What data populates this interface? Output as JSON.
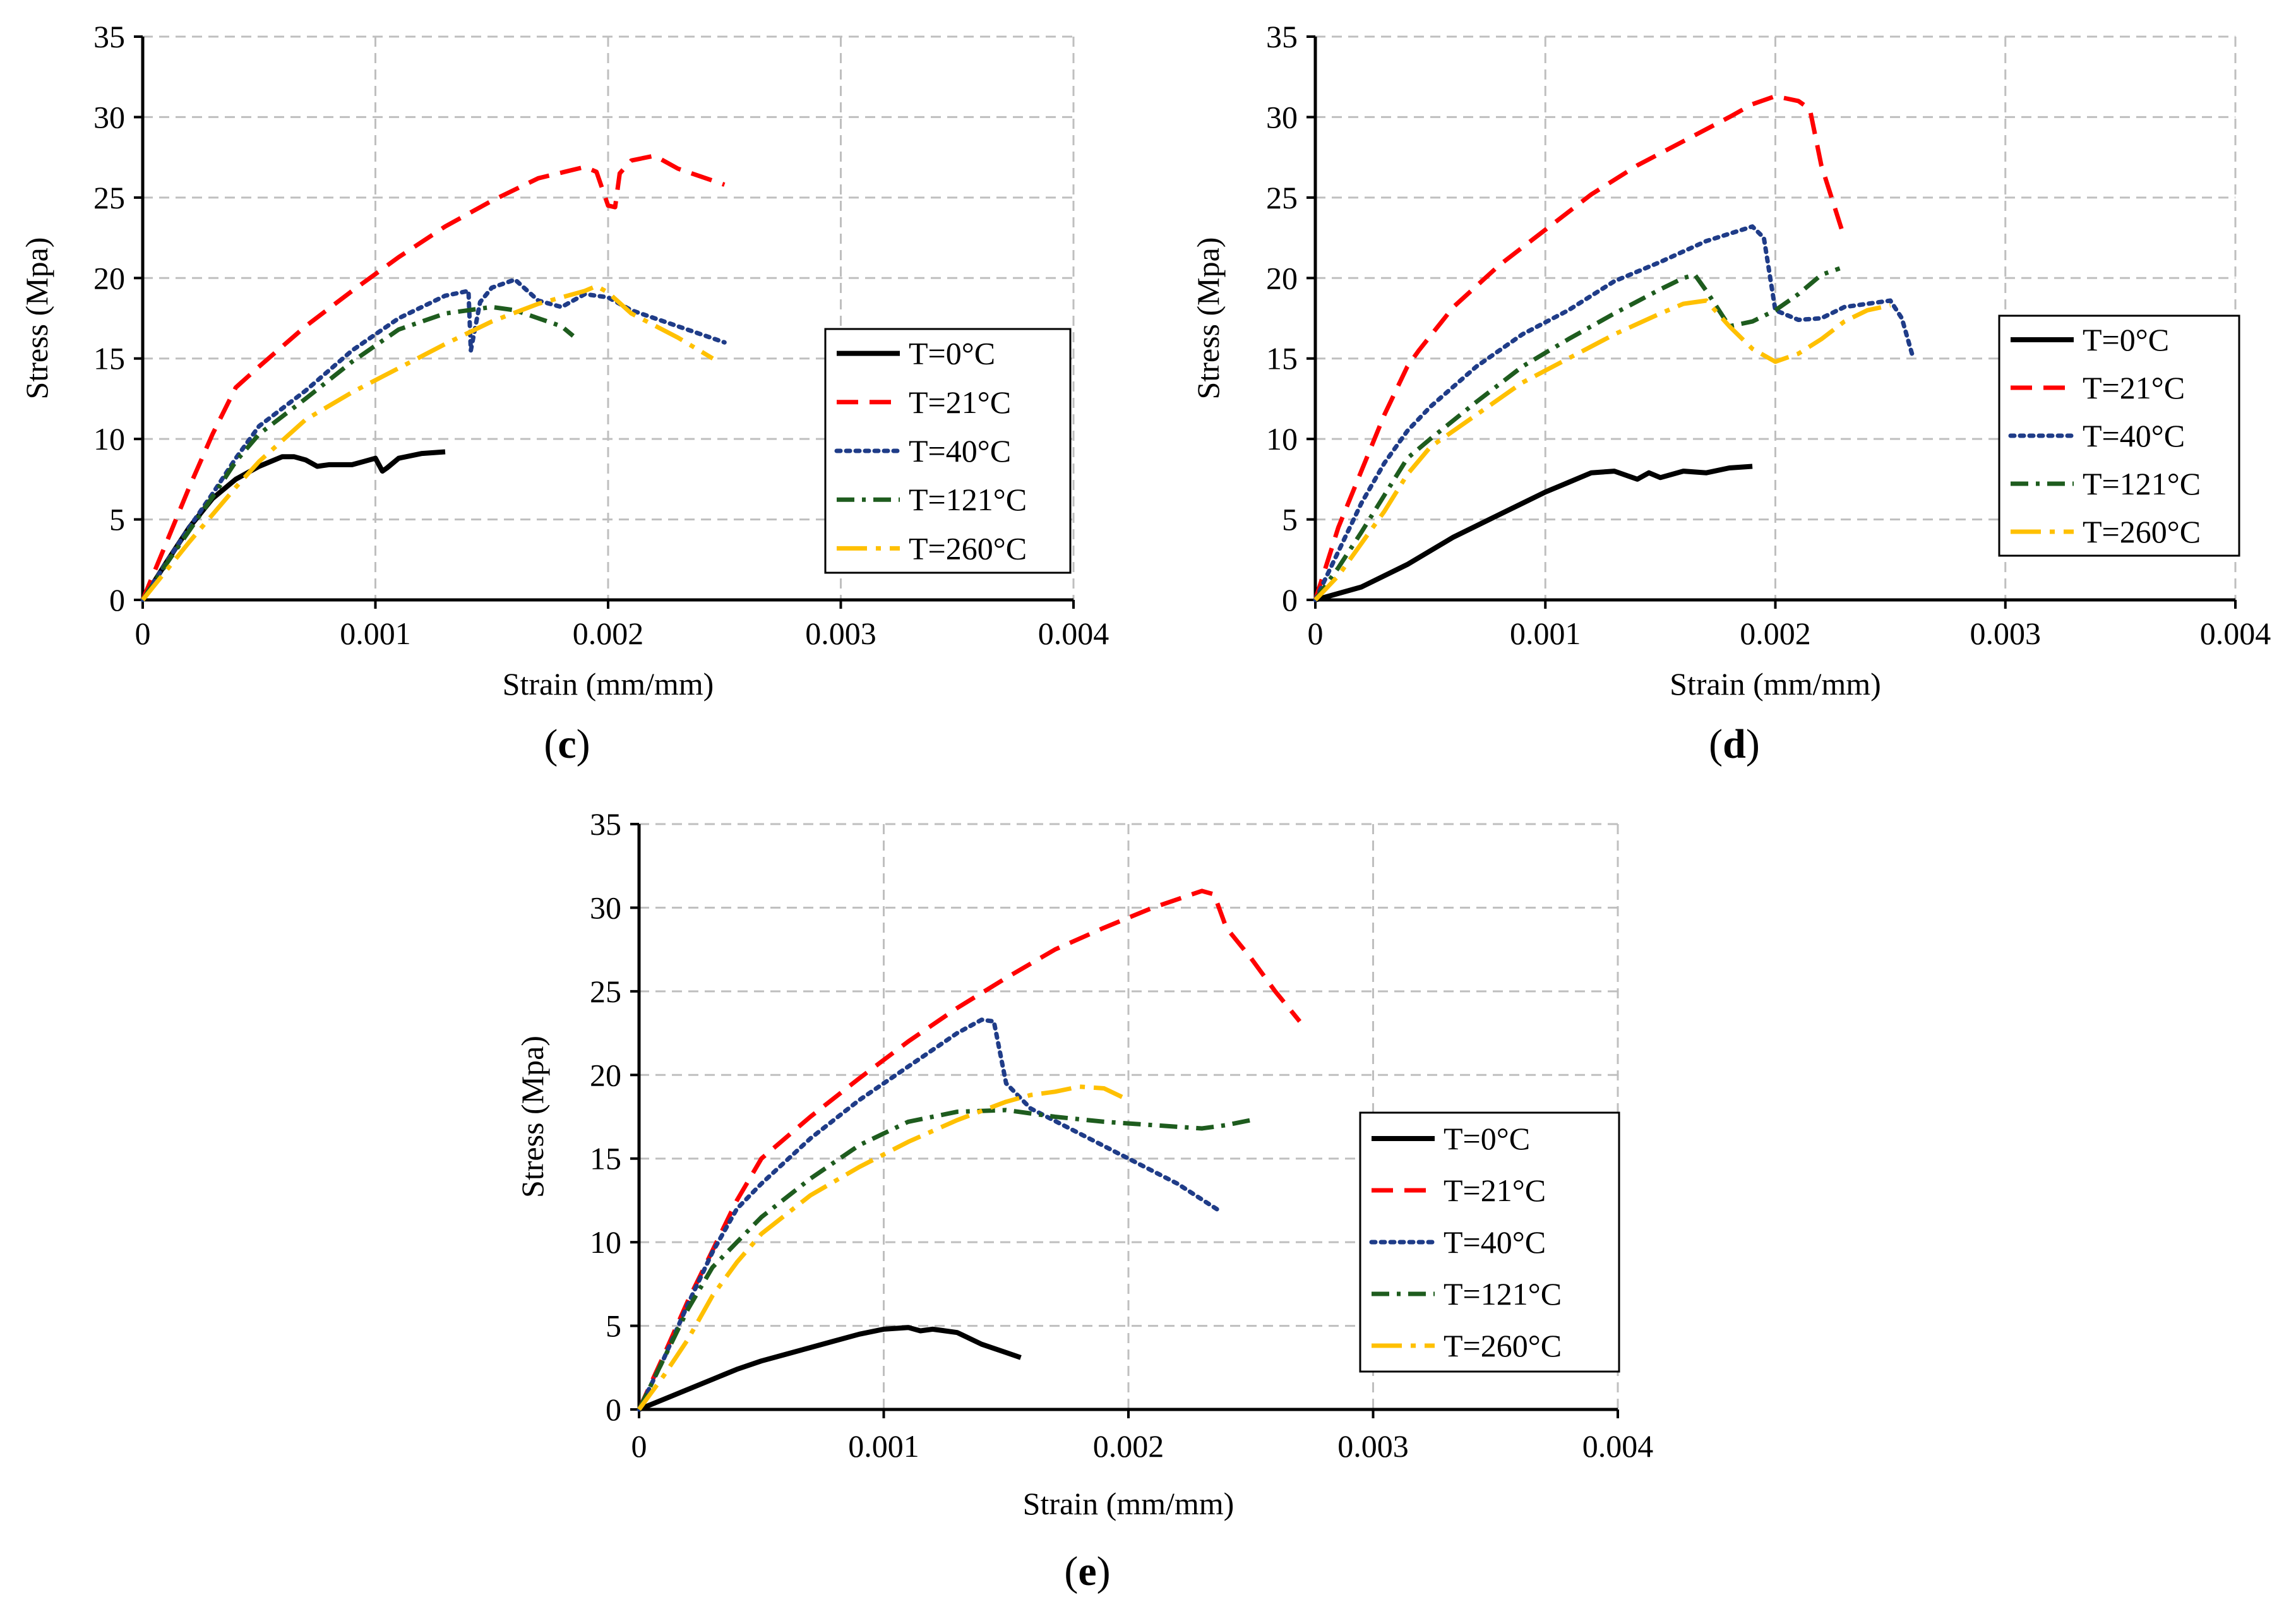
{
  "chart_data": [
    {
      "type": "line",
      "panel_label": "c",
      "xlabel": "Strain (mm/mm)",
      "ylabel": "Stress (Mpa)",
      "xlim": [
        0,
        0.004
      ],
      "ylim": [
        0,
        35
      ],
      "x_ticks": [
        0,
        0.001,
        0.002,
        0.003,
        0.004
      ],
      "x_tick_labels": [
        "0",
        "0.001",
        "0.002",
        "0.003",
        "0.004"
      ],
      "y_ticks": [
        0,
        5,
        10,
        15,
        20,
        25,
        30,
        35
      ],
      "y_tick_labels": [
        "0",
        "5",
        "10",
        "15",
        "20",
        "25",
        "30",
        "35"
      ],
      "grid": true,
      "legend_position": "center-right",
      "series": [
        {
          "name": "T=0°C",
          "color": "#000000",
          "style": "solid",
          "x": [
            0,
            0.0001,
            0.0002,
            0.0003,
            0.0004,
            0.0005,
            0.0006,
            0.00065,
            0.0007,
            0.00075,
            0.0008,
            0.0009,
            0.00095,
            0.001,
            0.00103,
            0.00105,
            0.0011,
            0.0012,
            0.0013
          ],
          "y": [
            0,
            2.3,
            4.5,
            6.3,
            7.5,
            8.3,
            8.9,
            8.9,
            8.7,
            8.3,
            8.4,
            8.4,
            8.6,
            8.8,
            8.0,
            8.2,
            8.8,
            9.1,
            9.2
          ]
        },
        {
          "name": "T=21°C",
          "color": "#ff0000",
          "style": "dashed",
          "x": [
            0,
            0.0001,
            0.0002,
            0.0003,
            0.0004,
            0.0005,
            0.0007,
            0.0009,
            0.0011,
            0.0013,
            0.0015,
            0.0017,
            0.0019,
            0.00195,
            0.002,
            0.00203,
            0.00205,
            0.0021,
            0.0022,
            0.0023,
            0.0025
          ],
          "y": [
            0,
            3.5,
            7.0,
            10.3,
            13.2,
            14.5,
            17.0,
            19.2,
            21.3,
            23.2,
            24.8,
            26.2,
            26.9,
            26.6,
            24.5,
            24.4,
            26.5,
            27.3,
            27.6,
            26.8,
            25.8
          ]
        },
        {
          "name": "T=40°C",
          "color": "#1f3c88",
          "style": "dotted",
          "x": [
            0,
            0.0001,
            0.0002,
            0.0003,
            0.0004,
            0.0005,
            0.0007,
            0.0009,
            0.0011,
            0.0013,
            0.0014,
            0.00141,
            0.00145,
            0.0015,
            0.0016,
            0.0017,
            0.0018,
            0.0019,
            0.002,
            0.0021,
            0.0023,
            0.0025
          ],
          "y": [
            0,
            2.3,
            4.5,
            6.6,
            8.8,
            10.8,
            13.0,
            15.5,
            17.5,
            18.9,
            19.2,
            15.5,
            18.5,
            19.4,
            19.9,
            18.6,
            18.2,
            19.0,
            18.8,
            18.0,
            17.0,
            16.0
          ]
        },
        {
          "name": "T=121°C",
          "color": "#1e5c1e",
          "style": "dashdot",
          "x": [
            0,
            0.0001,
            0.0002,
            0.0003,
            0.0004,
            0.0005,
            0.0007,
            0.0009,
            0.0011,
            0.0013,
            0.0015,
            0.0016,
            0.0017,
            0.0018,
            0.00185
          ],
          "y": [
            0,
            2.2,
            4.3,
            6.4,
            8.6,
            10.3,
            12.5,
            14.8,
            16.8,
            17.8,
            18.2,
            18.0,
            17.5,
            17.0,
            16.4
          ]
        },
        {
          "name": "T=260°C",
          "color": "#ffc000",
          "style": "longdashdot",
          "x": [
            0,
            0.0001,
            0.0002,
            0.0003,
            0.0004,
            0.0005,
            0.0007,
            0.0009,
            0.0011,
            0.0013,
            0.0015,
            0.0017,
            0.0019,
            0.00195,
            0.002,
            0.0021,
            0.0023,
            0.00245
          ],
          "y": [
            0,
            1.8,
            3.6,
            5.3,
            7.0,
            8.6,
            11.2,
            12.9,
            14.4,
            15.9,
            17.3,
            18.4,
            19.2,
            19.5,
            19.1,
            17.8,
            16.3,
            15.0
          ]
        }
      ]
    },
    {
      "type": "line",
      "panel_label": "d",
      "xlabel": "Strain (mm/mm)",
      "ylabel": "Stress (Mpa)",
      "xlim": [
        0,
        0.004
      ],
      "ylim": [
        0,
        35
      ],
      "x_ticks": [
        0,
        0.001,
        0.002,
        0.003,
        0.004
      ],
      "x_tick_labels": [
        "0",
        "0.001",
        "0.002",
        "0.003",
        "0.004"
      ],
      "y_ticks": [
        0,
        5,
        10,
        15,
        20,
        25,
        30,
        35
      ],
      "y_tick_labels": [
        "0",
        "5",
        "10",
        "15",
        "20",
        "25",
        "30",
        "35"
      ],
      "grid": true,
      "legend_position": "center-right",
      "series": [
        {
          "name": "T=0°C",
          "color": "#000000",
          "style": "solid",
          "x": [
            0,
            0.0002,
            0.0004,
            0.0006,
            0.0008,
            0.001,
            0.0011,
            0.0012,
            0.0013,
            0.0014,
            0.00145,
            0.0015,
            0.0016,
            0.0017,
            0.0018,
            0.0019
          ],
          "y": [
            0,
            0.8,
            2.2,
            3.9,
            5.3,
            6.7,
            7.3,
            7.9,
            8.0,
            7.5,
            7.9,
            7.6,
            8.0,
            7.9,
            8.2,
            8.3
          ]
        },
        {
          "name": "T=21°C",
          "color": "#ff0000",
          "style": "dashed",
          "x": [
            0,
            0.0001,
            0.0002,
            0.0003,
            0.0004,
            0.00045,
            0.0006,
            0.0008,
            0.001,
            0.0012,
            0.0014,
            0.0016,
            0.0018,
            0.0019,
            0.002,
            0.0021,
            0.00215,
            0.0022,
            0.0023
          ],
          "y": [
            0,
            4.5,
            8.0,
            11.5,
            14.5,
            15.5,
            18.2,
            20.8,
            23.0,
            25.2,
            27.0,
            28.5,
            30.0,
            30.8,
            31.3,
            31.0,
            30.5,
            27.0,
            22.5
          ]
        },
        {
          "name": "T=40°C",
          "color": "#1f3c88",
          "style": "dotted",
          "x": [
            0,
            0.0001,
            0.0002,
            0.0003,
            0.0004,
            0.0005,
            0.0007,
            0.0009,
            0.0011,
            0.0013,
            0.0015,
            0.0017,
            0.0019,
            0.00195,
            0.002,
            0.0021,
            0.0022,
            0.0023,
            0.0024,
            0.0025,
            0.00255,
            0.0026
          ],
          "y": [
            0,
            3.0,
            6.0,
            8.5,
            10.5,
            12.0,
            14.5,
            16.5,
            18.0,
            19.8,
            21.0,
            22.3,
            23.2,
            22.5,
            18.0,
            17.4,
            17.5,
            18.2,
            18.4,
            18.6,
            17.5,
            15.0
          ]
        },
        {
          "name": "T=121°C",
          "color": "#1e5c1e",
          "style": "dashdot",
          "x": [
            0,
            0.0001,
            0.0002,
            0.0003,
            0.0004,
            0.0005,
            0.0007,
            0.0009,
            0.0011,
            0.0013,
            0.0015,
            0.0016,
            0.00165,
            0.0017,
            0.0018,
            0.0019,
            0.002,
            0.0021,
            0.0022,
            0.00228
          ],
          "y": [
            0,
            2.0,
            4.2,
            6.5,
            8.8,
            10.0,
            12.3,
            14.5,
            16.2,
            17.8,
            19.3,
            20.0,
            20.2,
            19.2,
            17.0,
            17.3,
            18.0,
            19.0,
            20.2,
            20.6
          ]
        },
        {
          "name": "T=260°C",
          "color": "#ffc000",
          "style": "longdashdot",
          "x": [
            0,
            0.0001,
            0.0002,
            0.0003,
            0.0004,
            0.0005,
            0.0007,
            0.0009,
            0.0011,
            0.0013,
            0.0015,
            0.0016,
            0.0017,
            0.0018,
            0.0019,
            0.002,
            0.0021,
            0.0022,
            0.0023,
            0.0024,
            0.0025
          ],
          "y": [
            0,
            1.5,
            3.5,
            5.5,
            7.8,
            9.5,
            11.5,
            13.5,
            15.0,
            16.5,
            17.8,
            18.4,
            18.6,
            17.0,
            15.6,
            14.8,
            15.3,
            16.2,
            17.3,
            18.0,
            18.3
          ]
        }
      ]
    },
    {
      "type": "line",
      "panel_label": "e",
      "xlabel": "Strain (mm/mm)",
      "ylabel": "Stress (Mpa)",
      "xlim": [
        0,
        0.004
      ],
      "ylim": [
        0,
        35
      ],
      "x_ticks": [
        0,
        0.001,
        0.002,
        0.003,
        0.004
      ],
      "x_tick_labels": [
        "0",
        "0.001",
        "0.002",
        "0.003",
        "0.004"
      ],
      "y_ticks": [
        0,
        5,
        10,
        15,
        20,
        25,
        30,
        35
      ],
      "y_tick_labels": [
        "0",
        "5",
        "10",
        "15",
        "20",
        "25",
        "30",
        "35"
      ],
      "grid": true,
      "legend_position": "bottom-right",
      "series": [
        {
          "name": "T=0°C",
          "color": "#000000",
          "style": "solid",
          "x": [
            0,
            0.0001,
            0.0002,
            0.0003,
            0.0004,
            0.0005,
            0.0006,
            0.0007,
            0.0008,
            0.0009,
            0.001,
            0.0011,
            0.00115,
            0.0012,
            0.00125,
            0.0013,
            0.0014,
            0.0015,
            0.00156
          ],
          "y": [
            0,
            0.6,
            1.2,
            1.8,
            2.4,
            2.9,
            3.3,
            3.7,
            4.1,
            4.5,
            4.8,
            4.9,
            4.7,
            4.8,
            4.7,
            4.6,
            3.9,
            3.4,
            3.1
          ]
        },
        {
          "name": "T=21°C",
          "color": "#ff0000",
          "style": "dashed",
          "x": [
            0,
            0.0001,
            0.0002,
            0.0003,
            0.0004,
            0.0005,
            0.0007,
            0.0009,
            0.0011,
            0.0013,
            0.0015,
            0.0017,
            0.0019,
            0.0021,
            0.0023,
            0.00235,
            0.0024,
            0.0025,
            0.0026,
            0.0027
          ],
          "y": [
            0,
            3.2,
            6.5,
            9.5,
            12.5,
            15.0,
            17.5,
            19.8,
            22.0,
            24.0,
            25.8,
            27.5,
            28.8,
            30.0,
            31.0,
            30.8,
            28.8,
            27.0,
            25.0,
            23.2
          ]
        },
        {
          "name": "T=40°C",
          "color": "#1f3c88",
          "style": "dotted",
          "x": [
            0,
            0.0001,
            0.0002,
            0.0003,
            0.0004,
            0.0005,
            0.0007,
            0.0009,
            0.0011,
            0.0013,
            0.0014,
            0.00145,
            0.0015,
            0.0016,
            0.0018,
            0.002,
            0.0022,
            0.00238
          ],
          "y": [
            0,
            3.0,
            6.3,
            9.4,
            12.0,
            13.5,
            16.2,
            18.5,
            20.5,
            22.5,
            23.3,
            23.2,
            19.5,
            18.0,
            16.5,
            15.0,
            13.5,
            11.8
          ]
        },
        {
          "name": "T=121°C",
          "color": "#1e5c1e",
          "style": "dashdot",
          "x": [
            0,
            0.0001,
            0.0002,
            0.0003,
            0.0004,
            0.0005,
            0.0007,
            0.0009,
            0.0011,
            0.0013,
            0.0015,
            0.0017,
            0.0019,
            0.0021,
            0.0023,
            0.0024,
            0.0025
          ],
          "y": [
            0,
            3.0,
            6.0,
            8.5,
            10.0,
            11.5,
            13.8,
            15.8,
            17.2,
            17.8,
            17.9,
            17.5,
            17.2,
            17.0,
            16.8,
            17.0,
            17.3
          ]
        },
        {
          "name": "T=260°C",
          "color": "#ffc000",
          "style": "longdashdot",
          "x": [
            0,
            0.0001,
            0.0002,
            0.0003,
            0.0004,
            0.0005,
            0.0007,
            0.0009,
            0.0011,
            0.0013,
            0.0015,
            0.0016,
            0.0017,
            0.0018,
            0.0019,
            0.002
          ],
          "y": [
            0,
            2.0,
            4.2,
            6.8,
            8.8,
            10.5,
            12.8,
            14.5,
            16.0,
            17.3,
            18.4,
            18.8,
            19.0,
            19.3,
            19.2,
            18.5
          ]
        }
      ]
    }
  ]
}
